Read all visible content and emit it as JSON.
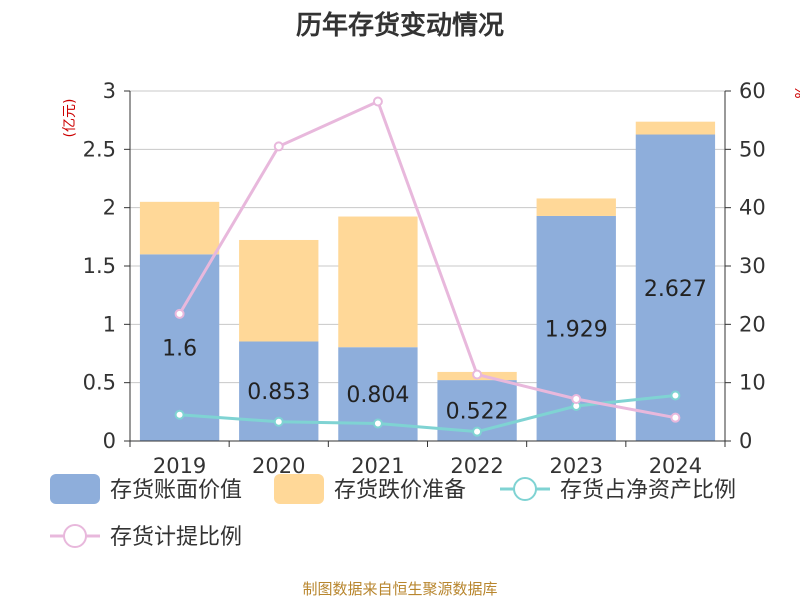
{
  "chart_data": {
    "type": "bar",
    "title": "历年存货变动情况",
    "categories": [
      "2019",
      "2020",
      "2021",
      "2022",
      "2023",
      "2024"
    ],
    "left_axis": {
      "unit": "(亿元)",
      "ylim": [
        0,
        3
      ],
      "ticks": [
        "0",
        "0.5",
        "1",
        "1.5",
        "2",
        "2.5",
        "3"
      ]
    },
    "right_axis": {
      "unit": "%",
      "ylim": [
        0,
        60
      ],
      "ticks": [
        "0",
        "10",
        "20",
        "30",
        "40",
        "50",
        "60"
      ]
    },
    "series": [
      {
        "name": "存货账面价值",
        "kind": "bar-stacked",
        "axis": "left",
        "color": "#8eaedb",
        "values": [
          1.6,
          0.853,
          0.804,
          0.522,
          1.929,
          2.627
        ],
        "labels": [
          "1.6",
          "0.853",
          "0.804",
          "0.522",
          "1.929",
          "2.627"
        ]
      },
      {
        "name": "存货跌价准备",
        "kind": "bar-stacked",
        "axis": "left",
        "color": "#ffd898",
        "values": [
          0.45,
          0.87,
          1.12,
          0.07,
          0.15,
          0.11
        ]
      },
      {
        "name": "存货占净资产比例",
        "kind": "line",
        "axis": "right",
        "color": "#7fd3d3",
        "values": [
          4.5,
          3.3,
          3.0,
          1.6,
          6.0,
          7.8
        ]
      },
      {
        "name": "存货计提比例",
        "kind": "line",
        "axis": "right",
        "color": "#e8b8dc",
        "values": [
          21.8,
          50.5,
          58.2,
          11.4,
          7.2,
          4.0
        ]
      }
    ],
    "grid": true,
    "legend_position": "bottom"
  },
  "source_text": "制图数据来自恒生聚源数据库"
}
